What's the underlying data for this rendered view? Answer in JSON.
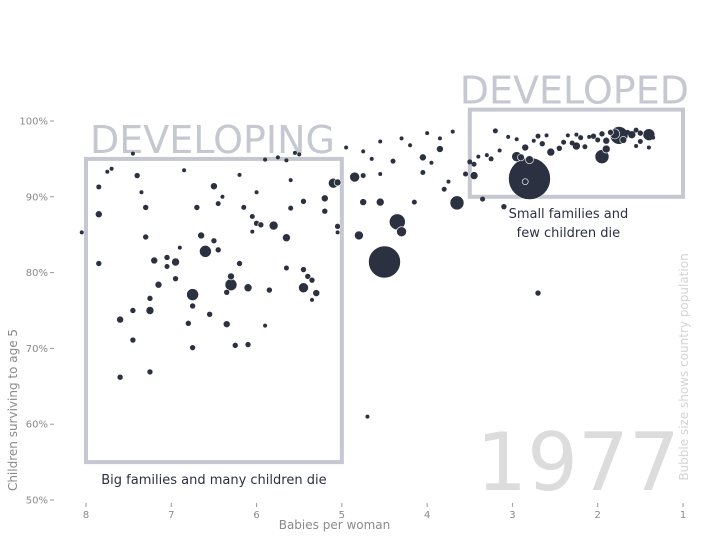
{
  "chart_data": {
    "type": "scatter",
    "title": "",
    "xlabel": "Babies per woman",
    "ylabel": "Children surviving to age 5",
    "xlim": [
      8.0,
      1.0
    ],
    "x_reversed": true,
    "ylim": [
      50,
      100
    ],
    "x_ticks": [
      "8",
      "7",
      "6",
      "5",
      "4",
      "3",
      "2",
      "1"
    ],
    "y_ticks": [
      "50%",
      "60%",
      "70%",
      "80%",
      "90%",
      "100%"
    ],
    "year_watermark": "1977",
    "size_note": "Bubble size shows country population",
    "colors": {
      "bubble": "#2b3140",
      "box": "#c5c8d0",
      "watermark": "#dcdcdc",
      "axis_text": "#8a8a8a"
    },
    "regions": [
      {
        "name": "DEVELOPING",
        "caption": "Big families and many children die",
        "x_range": [
          8.0,
          5.0
        ],
        "y_range": [
          55.0,
          95.0
        ]
      },
      {
        "name": "DEVELOPED",
        "caption_lines": [
          "Small families and",
          "few children die"
        ],
        "x_range": [
          3.5,
          1.0
        ],
        "y_range": [
          90.0,
          101.5
        ]
      }
    ],
    "series": [
      {
        "points": [
          {
            "x": 8.05,
            "y": 85.3,
            "r": 2
          },
          {
            "x": 7.85,
            "y": 87.7,
            "r": 3.5
          },
          {
            "x": 7.85,
            "y": 91.3,
            "r": 2.5
          },
          {
            "x": 7.85,
            "y": 81.2,
            "r": 3
          },
          {
            "x": 7.75,
            "y": 93.3,
            "r": 2
          },
          {
            "x": 7.7,
            "y": 93.7,
            "r": 2
          },
          {
            "x": 7.6,
            "y": 73.8,
            "r": 3.5
          },
          {
            "x": 7.6,
            "y": 66.2,
            "r": 3
          },
          {
            "x": 7.45,
            "y": 75.0,
            "r": 3
          },
          {
            "x": 7.45,
            "y": 71.1,
            "r": 3
          },
          {
            "x": 7.45,
            "y": 95.7,
            "r": 2
          },
          {
            "x": 7.4,
            "y": 92.8,
            "r": 3
          },
          {
            "x": 7.35,
            "y": 90.6,
            "r": 2
          },
          {
            "x": 7.3,
            "y": 84.7,
            "r": 3
          },
          {
            "x": 7.3,
            "y": 88.6,
            "r": 3
          },
          {
            "x": 7.25,
            "y": 76.6,
            "r": 3
          },
          {
            "x": 7.25,
            "y": 75.0,
            "r": 4
          },
          {
            "x": 7.25,
            "y": 66.9,
            "r": 3
          },
          {
            "x": 7.2,
            "y": 81.6,
            "r": 3.5
          },
          {
            "x": 7.15,
            "y": 78.4,
            "r": 3.5
          },
          {
            "x": 7.05,
            "y": 80.8,
            "r": 2.5
          },
          {
            "x": 7.05,
            "y": 82.0,
            "r": 3
          },
          {
            "x": 6.95,
            "y": 81.4,
            "r": 4
          },
          {
            "x": 6.95,
            "y": 79.2,
            "r": 3
          },
          {
            "x": 6.9,
            "y": 83.3,
            "r": 2
          },
          {
            "x": 6.85,
            "y": 93.5,
            "r": 2
          },
          {
            "x": 6.8,
            "y": 73.3,
            "r": 3
          },
          {
            "x": 6.75,
            "y": 70.1,
            "r": 3
          },
          {
            "x": 6.75,
            "y": 75.6,
            "r": 3
          },
          {
            "x": 6.75,
            "y": 77.1,
            "r": 6
          },
          {
            "x": 6.7,
            "y": 88.6,
            "r": 3
          },
          {
            "x": 6.65,
            "y": 84.9,
            "r": 3.5
          },
          {
            "x": 6.6,
            "y": 82.8,
            "r": 6
          },
          {
            "x": 6.55,
            "y": 74.5,
            "r": 3
          },
          {
            "x": 6.5,
            "y": 91.4,
            "r": 3.5
          },
          {
            "x": 6.5,
            "y": 84.2,
            "r": 3
          },
          {
            "x": 6.45,
            "y": 83.0,
            "r": 3
          },
          {
            "x": 6.45,
            "y": 89.1,
            "r": 2.5
          },
          {
            "x": 6.4,
            "y": 90.0,
            "r": 2
          },
          {
            "x": 6.35,
            "y": 73.2,
            "r": 3.5
          },
          {
            "x": 6.35,
            "y": 77.4,
            "r": 3
          },
          {
            "x": 6.3,
            "y": 78.4,
            "r": 6
          },
          {
            "x": 6.3,
            "y": 79.5,
            "r": 3.5
          },
          {
            "x": 6.25,
            "y": 70.4,
            "r": 3
          },
          {
            "x": 6.2,
            "y": 81.2,
            "r": 3
          },
          {
            "x": 6.2,
            "y": 92.9,
            "r": 2
          },
          {
            "x": 6.15,
            "y": 88.6,
            "r": 2.5
          },
          {
            "x": 6.1,
            "y": 78.0,
            "r": 4
          },
          {
            "x": 6.1,
            "y": 70.5,
            "r": 3
          },
          {
            "x": 6.05,
            "y": 85.4,
            "r": 2
          },
          {
            "x": 6.05,
            "y": 87.4,
            "r": 2.5
          },
          {
            "x": 6.0,
            "y": 90.6,
            "r": 2
          },
          {
            "x": 6.0,
            "y": 86.5,
            "r": 3
          },
          {
            "x": 5.95,
            "y": 86.3,
            "r": 3
          },
          {
            "x": 5.9,
            "y": 94.9,
            "r": 2
          },
          {
            "x": 5.9,
            "y": 73.0,
            "r": 2
          },
          {
            "x": 5.85,
            "y": 77.7,
            "r": 3
          },
          {
            "x": 5.8,
            "y": 86.2,
            "r": 4.5
          },
          {
            "x": 5.75,
            "y": 95.2,
            "r": 2
          },
          {
            "x": 5.65,
            "y": 84.6,
            "r": 4
          },
          {
            "x": 5.65,
            "y": 94.8,
            "r": 2
          },
          {
            "x": 5.65,
            "y": 80.6,
            "r": 2.5
          },
          {
            "x": 5.6,
            "y": 92.2,
            "r": 2
          },
          {
            "x": 5.6,
            "y": 88.5,
            "r": 2.5
          },
          {
            "x": 5.55,
            "y": 95.8,
            "r": 2
          },
          {
            "x": 5.5,
            "y": 95.6,
            "r": 2
          },
          {
            "x": 5.45,
            "y": 89.4,
            "r": 3
          },
          {
            "x": 5.45,
            "y": 80.4,
            "r": 3
          },
          {
            "x": 5.45,
            "y": 78.0,
            "r": 5
          },
          {
            "x": 5.4,
            "y": 79.5,
            "r": 3
          },
          {
            "x": 5.35,
            "y": 79.0,
            "r": 3
          },
          {
            "x": 5.35,
            "y": 76.4,
            "r": 2
          },
          {
            "x": 5.3,
            "y": 77.3,
            "r": 3.5
          },
          {
            "x": 5.2,
            "y": 88.1,
            "r": 3
          },
          {
            "x": 5.2,
            "y": 89.8,
            "r": 3.5
          },
          {
            "x": 5.1,
            "y": 91.8,
            "r": 5
          },
          {
            "x": 5.05,
            "y": 91.9,
            "r": 3.5
          },
          {
            "x": 5.05,
            "y": 86.1,
            "r": 3
          },
          {
            "x": 5.05,
            "y": 85.3,
            "r": 2
          },
          {
            "x": 4.95,
            "y": 96.5,
            "r": 2
          },
          {
            "x": 4.85,
            "y": 92.6,
            "r": 5
          },
          {
            "x": 4.75,
            "y": 89.3,
            "r": 3.5
          },
          {
            "x": 4.75,
            "y": 92.8,
            "r": 2.5
          },
          {
            "x": 4.75,
            "y": 96.0,
            "r": 2
          },
          {
            "x": 4.8,
            "y": 84.9,
            "r": 4.5
          },
          {
            "x": 4.7,
            "y": 61.0,
            "r": 2
          },
          {
            "x": 4.65,
            "y": 95.0,
            "r": 2
          },
          {
            "x": 4.55,
            "y": 89.3,
            "r": 4
          },
          {
            "x": 4.55,
            "y": 93.0,
            "r": 2
          },
          {
            "x": 4.55,
            "y": 97.3,
            "r": 2
          },
          {
            "x": 4.5,
            "y": 81.4,
            "r": 16
          },
          {
            "x": 4.4,
            "y": 94.7,
            "r": 2.5
          },
          {
            "x": 4.35,
            "y": 86.7,
            "r": 8
          },
          {
            "x": 4.3,
            "y": 85.4,
            "r": 5
          },
          {
            "x": 4.3,
            "y": 97.7,
            "r": 2
          },
          {
            "x": 4.2,
            "y": 96.8,
            "r": 2
          },
          {
            "x": 4.15,
            "y": 89.3,
            "r": 2.5
          },
          {
            "x": 4.05,
            "y": 95.2,
            "r": 3.5
          },
          {
            "x": 4.05,
            "y": 93.2,
            "r": 2.5
          },
          {
            "x": 4.0,
            "y": 98.4,
            "r": 2
          },
          {
            "x": 3.95,
            "y": 94.5,
            "r": 2
          },
          {
            "x": 3.85,
            "y": 97.7,
            "r": 2
          },
          {
            "x": 3.85,
            "y": 96.3,
            "r": 3.5
          },
          {
            "x": 3.8,
            "y": 91.0,
            "r": 2.5
          },
          {
            "x": 3.75,
            "y": 92.0,
            "r": 2
          },
          {
            "x": 3.7,
            "y": 98.6,
            "r": 2
          },
          {
            "x": 3.65,
            "y": 89.2,
            "r": 7
          },
          {
            "x": 3.55,
            "y": 93.0,
            "r": 2.5
          },
          {
            "x": 3.5,
            "y": 94.6,
            "r": 2.5
          },
          {
            "x": 3.45,
            "y": 94.3,
            "r": 2.5
          },
          {
            "x": 3.45,
            "y": 92.8,
            "r": 4
          },
          {
            "x": 3.4,
            "y": 95.3,
            "r": 2
          },
          {
            "x": 3.35,
            "y": 89.7,
            "r": 2.5
          },
          {
            "x": 3.3,
            "y": 95.5,
            "r": 2
          },
          {
            "x": 3.25,
            "y": 95.0,
            "r": 2.5
          },
          {
            "x": 3.2,
            "y": 98.7,
            "r": 2.5
          },
          {
            "x": 3.15,
            "y": 96.1,
            "r": 2
          },
          {
            "x": 3.1,
            "y": 88.7,
            "r": 3
          },
          {
            "x": 3.05,
            "y": 97.9,
            "r": 2
          },
          {
            "x": 2.95,
            "y": 97.6,
            "r": 2
          },
          {
            "x": 2.95,
            "y": 95.3,
            "r": 5
          },
          {
            "x": 2.9,
            "y": 95.2,
            "r": 3.5
          },
          {
            "x": 2.85,
            "y": 92.0,
            "r": 3
          },
          {
            "x": 2.85,
            "y": 96.5,
            "r": 3.5
          },
          {
            "x": 2.8,
            "y": 94.9,
            "r": 4
          },
          {
            "x": 2.8,
            "y": 92.4,
            "r": 21
          },
          {
            "x": 2.75,
            "y": 97.4,
            "r": 2
          },
          {
            "x": 2.7,
            "y": 98.0,
            "r": 2.5
          },
          {
            "x": 2.7,
            "y": 77.3,
            "r": 3
          },
          {
            "x": 2.65,
            "y": 97.0,
            "r": 3
          },
          {
            "x": 2.6,
            "y": 98.1,
            "r": 2
          },
          {
            "x": 2.55,
            "y": 95.9,
            "r": 4
          },
          {
            "x": 2.45,
            "y": 96.4,
            "r": 3
          },
          {
            "x": 2.4,
            "y": 97.2,
            "r": 2.5
          },
          {
            "x": 2.35,
            "y": 98.1,
            "r": 2
          },
          {
            "x": 2.3,
            "y": 97.1,
            "r": 2.5
          },
          {
            "x": 2.25,
            "y": 98.2,
            "r": 2
          },
          {
            "x": 2.25,
            "y": 96.7,
            "r": 4
          },
          {
            "x": 2.2,
            "y": 97.8,
            "r": 2.5
          },
          {
            "x": 2.15,
            "y": 96.6,
            "r": 2.5
          },
          {
            "x": 2.1,
            "y": 97.9,
            "r": 2
          },
          {
            "x": 2.05,
            "y": 98.0,
            "r": 3
          },
          {
            "x": 2.0,
            "y": 97.5,
            "r": 2.5
          },
          {
            "x": 1.95,
            "y": 98.3,
            "r": 3
          },
          {
            "x": 1.95,
            "y": 95.3,
            "r": 7
          },
          {
            "x": 1.9,
            "y": 97.4,
            "r": 3.5
          },
          {
            "x": 1.9,
            "y": 96.3,
            "r": 4
          },
          {
            "x": 1.85,
            "y": 98.5,
            "r": 3
          },
          {
            "x": 1.8,
            "y": 98.3,
            "r": 5
          },
          {
            "x": 1.75,
            "y": 98.1,
            "r": 9
          },
          {
            "x": 1.7,
            "y": 97.5,
            "r": 3.5
          },
          {
            "x": 1.65,
            "y": 98.5,
            "r": 2.5
          },
          {
            "x": 1.6,
            "y": 98.2,
            "r": 4
          },
          {
            "x": 1.55,
            "y": 96.7,
            "r": 2
          },
          {
            "x": 1.55,
            "y": 98.8,
            "r": 2.5
          },
          {
            "x": 1.5,
            "y": 98.4,
            "r": 3
          },
          {
            "x": 1.5,
            "y": 97.3,
            "r": 2.5
          },
          {
            "x": 1.4,
            "y": 98.2,
            "r": 6
          },
          {
            "x": 1.4,
            "y": 96.5,
            "r": 2
          },
          {
            "x": 1.35,
            "y": 97.8,
            "r": 2
          }
        ]
      }
    ]
  }
}
